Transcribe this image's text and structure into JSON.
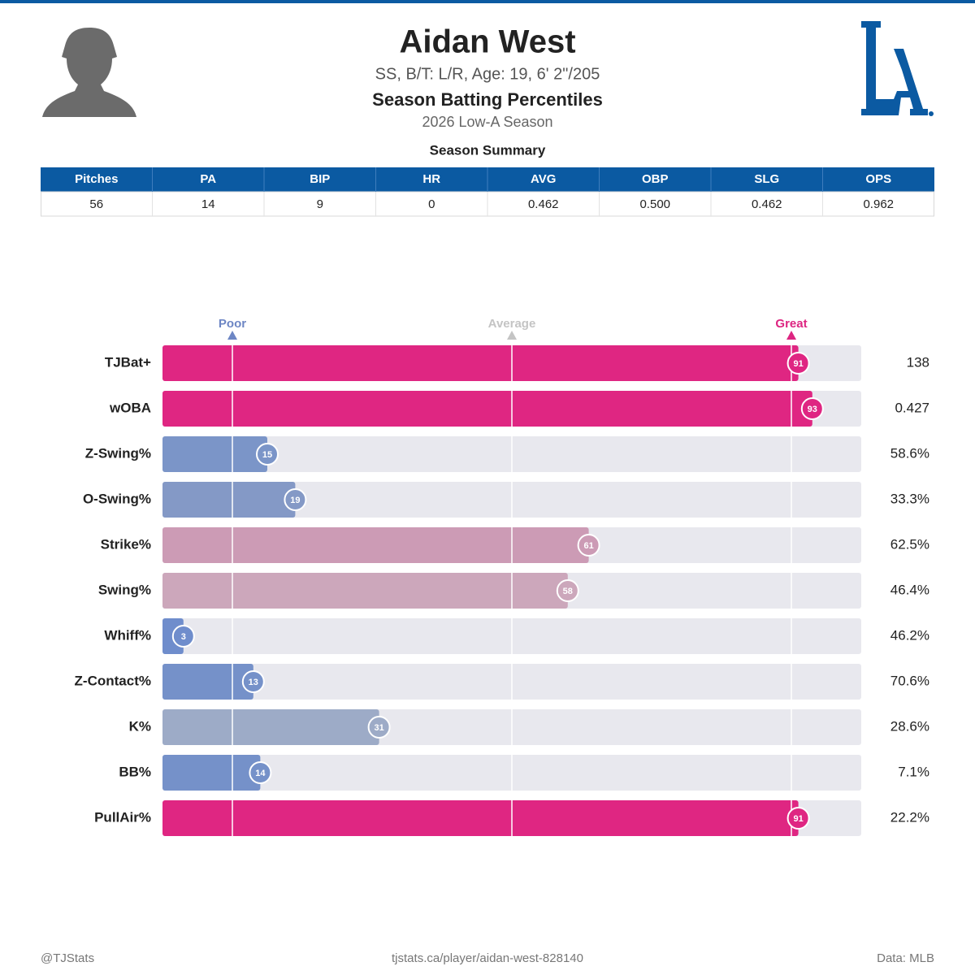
{
  "header": {
    "title": "Aidan West",
    "subtitle": "SS, B/T: L/R, Age: 19, 6' 2\"/205",
    "section": "Season Batting Percentiles",
    "season": "2026 Low-A Season"
  },
  "summary": {
    "title": "Season Summary",
    "columns": [
      "Pitches",
      "PA",
      "BIP",
      "HR",
      "AVG",
      "OBP",
      "SLG",
      "OPS"
    ],
    "row": [
      "56",
      "14",
      "9",
      "0",
      "0.462",
      "0.500",
      "0.462",
      "0.962"
    ]
  },
  "chart_data": {
    "type": "bar",
    "orientation": "horizontal",
    "categories": [
      "TJBat+",
      "wOBA",
      "Z-Swing%",
      "O-Swing%",
      "Strike%",
      "Swing%",
      "Whiff%",
      "Z-Contact%",
      "K%",
      "BB%",
      "PullAir%"
    ],
    "values": [
      91,
      93,
      15,
      19,
      61,
      58,
      3,
      13,
      31,
      14,
      91
    ],
    "colors": [
      "#df2682",
      "#df2682",
      "#7b95c8",
      "#8499c6",
      "#cc9bb5",
      "#cca7bb",
      "#6f8dcc",
      "#7591c9",
      "#9dabc7",
      "#7591c9",
      "#df2682"
    ],
    "stats": [
      "138",
      "0.427",
      "58.6%",
      "33.3%",
      "62.5%",
      "46.4%",
      "46.2%",
      "70.6%",
      "28.6%",
      "7.1%",
      "22.2%"
    ],
    "xlim": [
      0,
      100
    ],
    "xticks": [
      {
        "value": 10,
        "label": "Poor"
      },
      {
        "value": 50,
        "label": "Average"
      },
      {
        "value": 90,
        "label": "Great"
      }
    ],
    "xtick_colors": [
      "#6d86c4",
      "#c4c4c4",
      "#dd2581"
    ]
  },
  "footer": {
    "left": "@TJStats",
    "center": "tjstats.ca/player/aidan-west-828140",
    "right": "Data: MLB"
  }
}
